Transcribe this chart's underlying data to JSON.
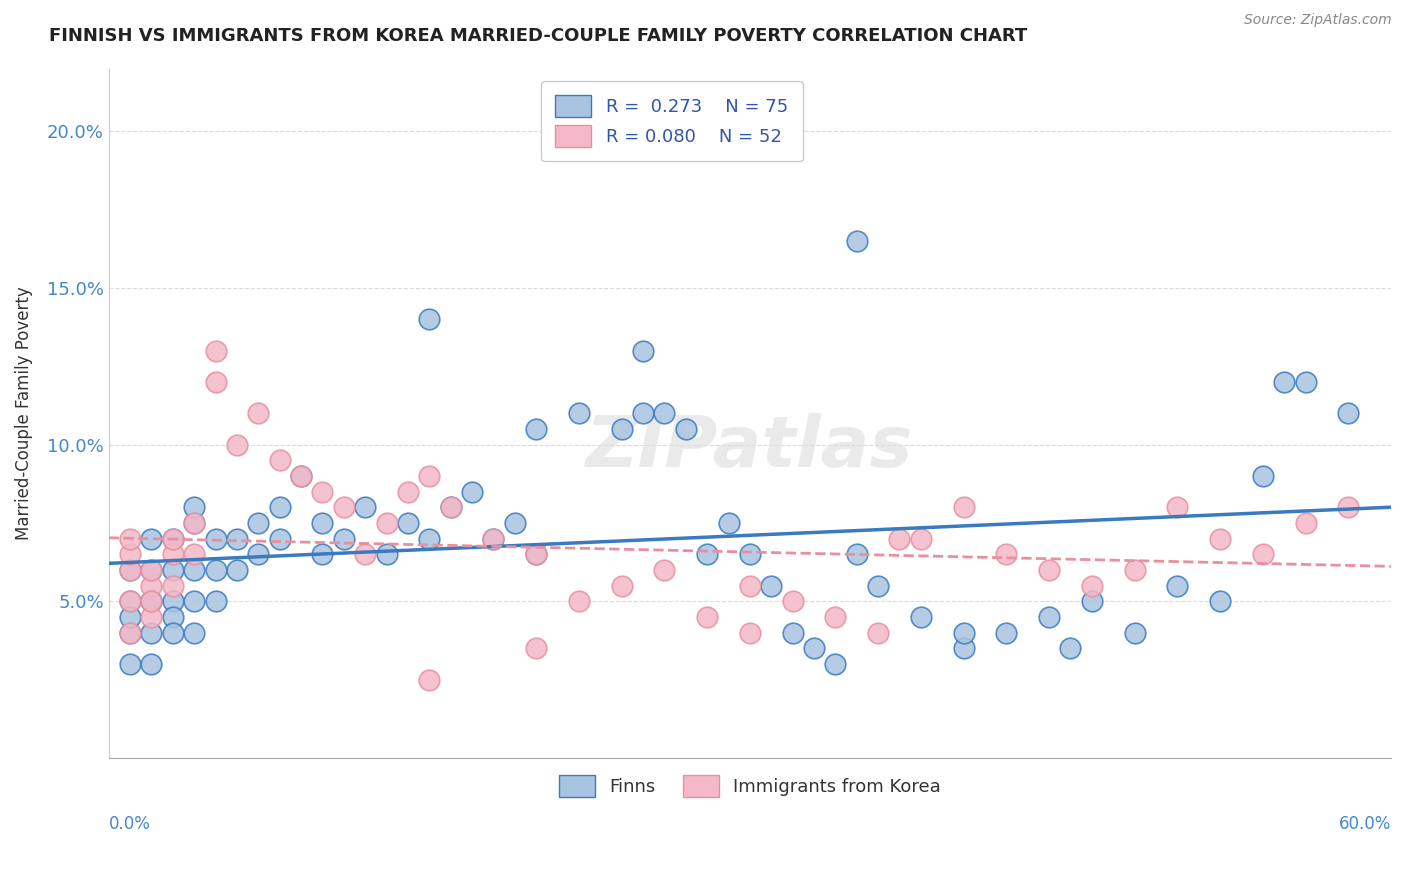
{
  "title": "FINNISH VS IMMIGRANTS FROM KOREA MARRIED-COUPLE FAMILY POVERTY CORRELATION CHART",
  "source": "Source: ZipAtlas.com",
  "ylabel": "Married-Couple Family Poverty",
  "xlim": [
    0.0,
    0.6
  ],
  "ylim": [
    0.0,
    0.22
  ],
  "legend_r1": "R =  0.273",
  "legend_n1": "N = 75",
  "legend_r2": "R = 0.080",
  "legend_n2": "N = 52",
  "finns_color": "#a8c4e0",
  "korea_color": "#f4b8c8",
  "finns_line_color": "#3a7bbf",
  "korea_line_color": "#e8909f",
  "finns_x": [
    0.01,
    0.01,
    0.01,
    0.01,
    0.01,
    0.02,
    0.02,
    0.02,
    0.02,
    0.02,
    0.02,
    0.03,
    0.03,
    0.03,
    0.03,
    0.03,
    0.04,
    0.04,
    0.04,
    0.04,
    0.04,
    0.05,
    0.05,
    0.05,
    0.06,
    0.06,
    0.07,
    0.07,
    0.08,
    0.08,
    0.09,
    0.1,
    0.1,
    0.11,
    0.12,
    0.13,
    0.14,
    0.15,
    0.16,
    0.17,
    0.18,
    0.19,
    0.2,
    0.22,
    0.24,
    0.25,
    0.26,
    0.27,
    0.28,
    0.29,
    0.3,
    0.31,
    0.32,
    0.33,
    0.34,
    0.35,
    0.36,
    0.38,
    0.4,
    0.42,
    0.44,
    0.46,
    0.48,
    0.5,
    0.52,
    0.54,
    0.56,
    0.58,
    0.35,
    0.4,
    0.25,
    0.15,
    0.2,
    0.45,
    0.55
  ],
  "finns_y": [
    0.04,
    0.05,
    0.06,
    0.03,
    0.045,
    0.05,
    0.04,
    0.06,
    0.05,
    0.03,
    0.07,
    0.05,
    0.06,
    0.045,
    0.07,
    0.04,
    0.05,
    0.06,
    0.075,
    0.04,
    0.08,
    0.06,
    0.07,
    0.05,
    0.06,
    0.07,
    0.065,
    0.075,
    0.07,
    0.08,
    0.09,
    0.065,
    0.075,
    0.07,
    0.08,
    0.065,
    0.075,
    0.07,
    0.08,
    0.085,
    0.07,
    0.075,
    0.065,
    0.11,
    0.105,
    0.11,
    0.11,
    0.105,
    0.065,
    0.075,
    0.065,
    0.055,
    0.04,
    0.035,
    0.03,
    0.065,
    0.055,
    0.045,
    0.035,
    0.04,
    0.045,
    0.05,
    0.04,
    0.055,
    0.05,
    0.09,
    0.12,
    0.11,
    0.165,
    0.04,
    0.13,
    0.14,
    0.105,
    0.035,
    0.12
  ],
  "korea_x": [
    0.01,
    0.01,
    0.01,
    0.01,
    0.01,
    0.02,
    0.02,
    0.02,
    0.02,
    0.03,
    0.03,
    0.03,
    0.04,
    0.04,
    0.05,
    0.05,
    0.06,
    0.07,
    0.08,
    0.09,
    0.1,
    0.11,
    0.12,
    0.13,
    0.14,
    0.15,
    0.16,
    0.18,
    0.2,
    0.22,
    0.24,
    0.26,
    0.28,
    0.3,
    0.32,
    0.34,
    0.36,
    0.38,
    0.4,
    0.42,
    0.44,
    0.46,
    0.48,
    0.5,
    0.52,
    0.54,
    0.56,
    0.58,
    0.37,
    0.3,
    0.2,
    0.15
  ],
  "korea_y": [
    0.05,
    0.06,
    0.04,
    0.065,
    0.07,
    0.055,
    0.045,
    0.06,
    0.05,
    0.065,
    0.07,
    0.055,
    0.065,
    0.075,
    0.12,
    0.13,
    0.1,
    0.11,
    0.095,
    0.09,
    0.085,
    0.08,
    0.065,
    0.075,
    0.085,
    0.09,
    0.08,
    0.07,
    0.065,
    0.05,
    0.055,
    0.06,
    0.045,
    0.055,
    0.05,
    0.045,
    0.04,
    0.07,
    0.08,
    0.065,
    0.06,
    0.055,
    0.06,
    0.08,
    0.07,
    0.065,
    0.075,
    0.08,
    0.07,
    0.04,
    0.035,
    0.025
  ]
}
